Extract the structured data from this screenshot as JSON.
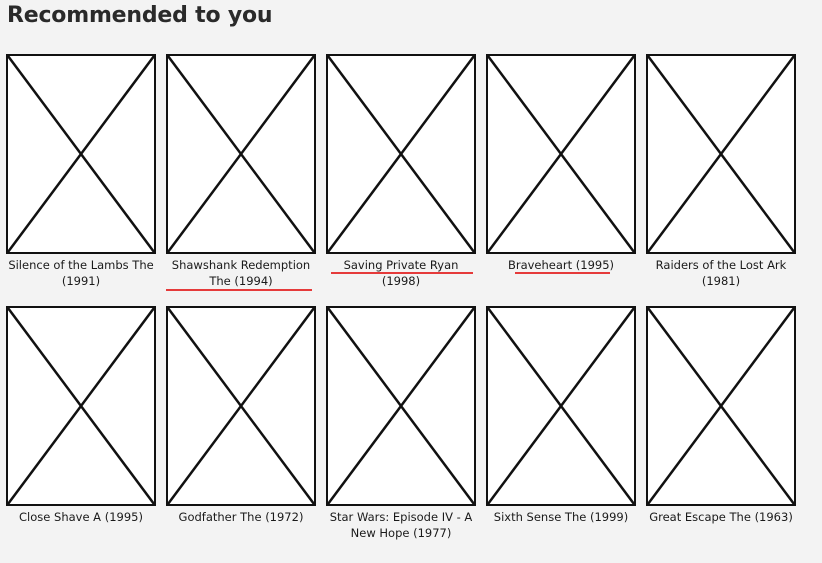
{
  "page": {
    "title": "Recommended to you"
  },
  "rows": [
    {
      "items": [
        {
          "title": "Silence of the Lambs The (1991)",
          "image_icon": "broken-image-icon"
        },
        {
          "title": "Shawshank Redemption The (1994)",
          "image_icon": "broken-image-icon",
          "spellcheck_underline": true
        },
        {
          "title": "Saving Private Ryan (1998)",
          "image_icon": "broken-image-icon",
          "spellcheck_underline": true
        },
        {
          "title": "Braveheart (1995)",
          "image_icon": "broken-image-icon",
          "spellcheck_underline": true
        },
        {
          "title": "Raiders of the Lost Ark (1981)",
          "image_icon": "broken-image-icon"
        }
      ]
    },
    {
      "items": [
        {
          "title": "Close Shave A (1995)",
          "image_icon": "broken-image-icon"
        },
        {
          "title": "Godfather The (1972)",
          "image_icon": "broken-image-icon"
        },
        {
          "title": "Star Wars: Episode IV - A New Hope (1977)",
          "image_icon": "broken-image-icon"
        },
        {
          "title": "Sixth Sense The (1999)",
          "image_icon": "broken-image-icon"
        },
        {
          "title": "Great Escape The (1963)",
          "image_icon": "broken-image-icon"
        }
      ]
    }
  ],
  "colors": {
    "background": "#f3f3f3",
    "poster_border": "#111111",
    "underline": "#e53a3a"
  }
}
